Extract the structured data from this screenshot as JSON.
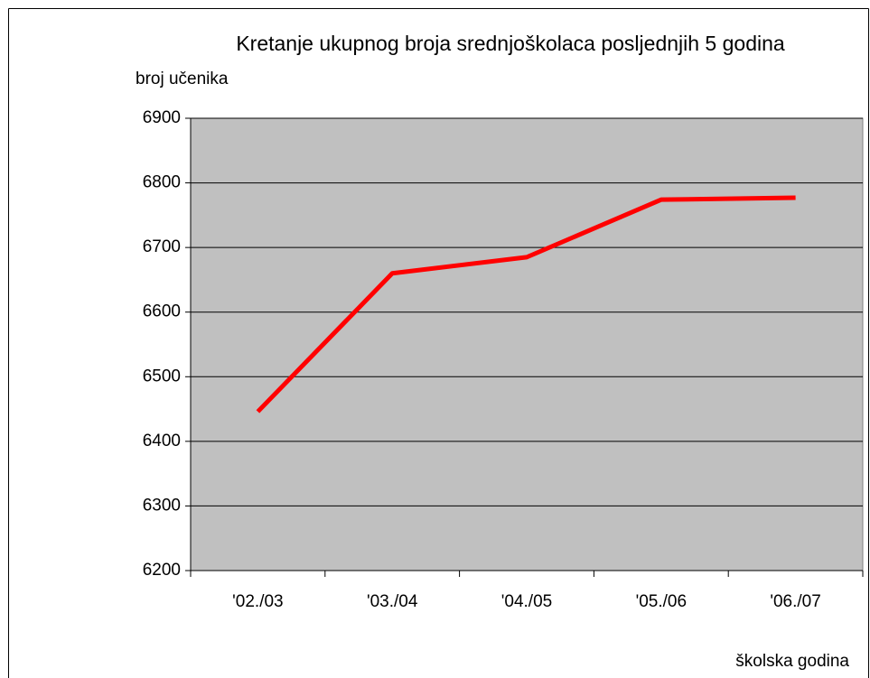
{
  "chart_data": {
    "type": "line",
    "title": "Kretanje ukupnog broja srednjoškolaca posljednjih 5 godina",
    "y_label": "broj učenika",
    "x_label": "školska godina",
    "categories": [
      "'02./03",
      "'03./04",
      "'04./05",
      "'05./06",
      "'06./07"
    ],
    "series": [
      {
        "name": "broj učenika",
        "color": "#ff0000",
        "values": [
          6446,
          6660,
          6685,
          6774,
          6777
        ]
      }
    ],
    "ylim": [
      6200,
      6900
    ],
    "yticks": [
      6200,
      6300,
      6400,
      6500,
      6600,
      6700,
      6800,
      6900
    ],
    "grid": true,
    "plot_background": "#c0c0c0"
  }
}
